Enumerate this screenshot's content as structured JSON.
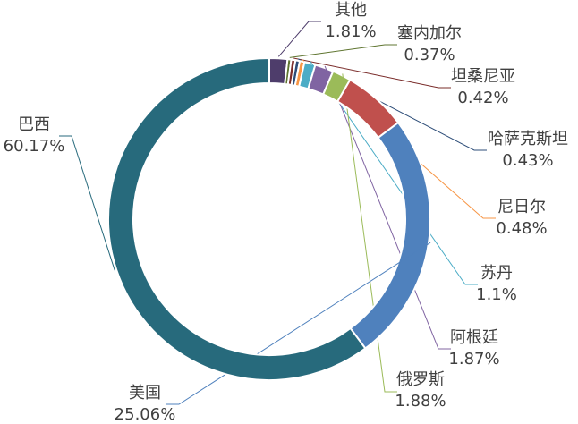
{
  "chart_data": {
    "type": "donut",
    "categories": [
      "其他",
      "塞内加尔",
      "坦桑尼亚",
      "哈萨克斯坦",
      "尼日尔",
      "苏丹",
      "阿根廷",
      "俄罗斯",
      null,
      "美国",
      "巴西"
    ],
    "values": [
      1.81,
      0.37,
      0.42,
      0.43,
      0.48,
      1.1,
      1.87,
      1.88,
      6.41,
      25.06,
      60.17
    ],
    "value_labels": [
      "1.81%",
      "0.37%",
      "0.42%",
      "0.43%",
      "0.48%",
      "1.1%",
      "1.87%",
      "1.88%",
      null,
      "25.06%",
      "60.17%"
    ],
    "colors": [
      "#4e3d6b",
      "#5f7530",
      "#7a2c2a",
      "#2d4d78",
      "#f79646",
      "#4bacc6",
      "#8064a2",
      "#9bbb59",
      "#c0504d",
      "#4f81bd",
      "#276a7c"
    ]
  }
}
